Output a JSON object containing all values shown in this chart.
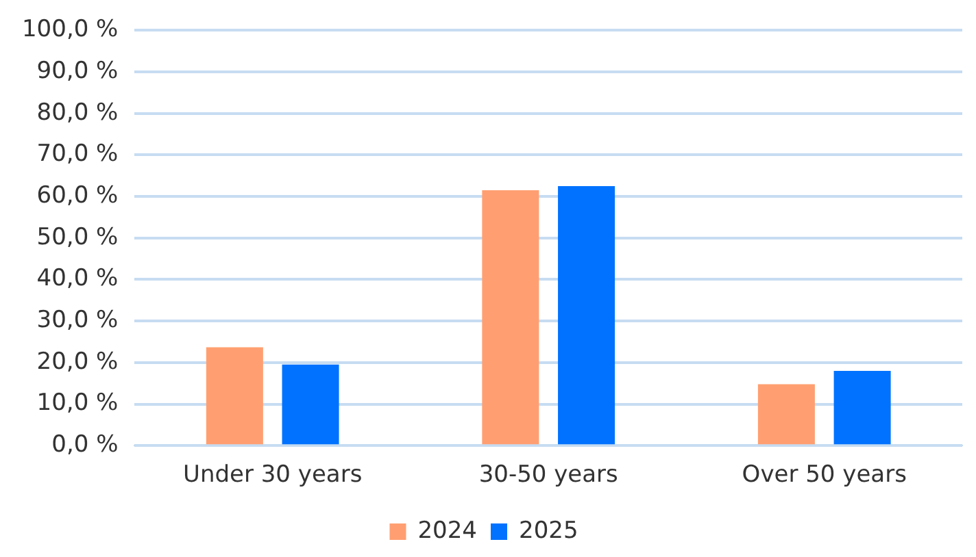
{
  "chart_data": {
    "type": "bar",
    "categories": [
      "Under 30 years",
      "30-50 years",
      "Over 50 years"
    ],
    "series": [
      {
        "name": "2024",
        "color": "#ff9f71",
        "values": [
          23.7,
          61.5,
          14.8
        ]
      },
      {
        "name": "2025",
        "color": "#0072ff",
        "values": [
          19.5,
          62.5,
          18.0
        ]
      }
    ],
    "ylim": [
      0,
      100
    ],
    "yticks": [
      {
        "value": 0,
        "label": "0,0 %"
      },
      {
        "value": 10,
        "label": "10,0 %"
      },
      {
        "value": 20,
        "label": "20,0 %"
      },
      {
        "value": 30,
        "label": "30,0 %"
      },
      {
        "value": 40,
        "label": "40,0 %"
      },
      {
        "value": 50,
        "label": "50,0 %"
      },
      {
        "value": 60,
        "label": "60,0 %"
      },
      {
        "value": 70,
        "label": "70,0 %"
      },
      {
        "value": 80,
        "label": "80,0 %"
      },
      {
        "value": 90,
        "label": "90,0 %"
      },
      {
        "value": 100,
        "label": "100,0 %"
      }
    ],
    "grid": "y",
    "legend": "bottom"
  }
}
